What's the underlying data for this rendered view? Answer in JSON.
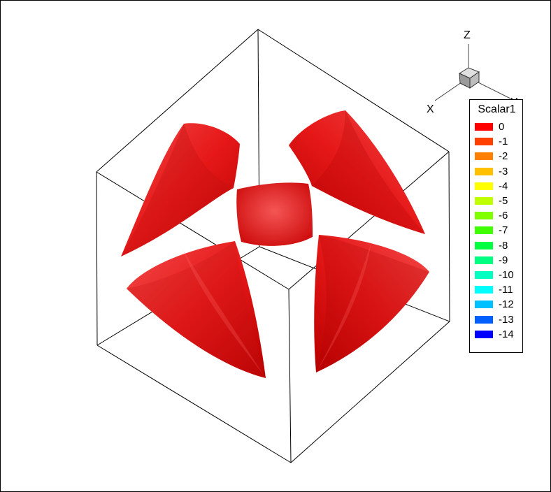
{
  "axes": {
    "x_label": "X",
    "y_label": "Y",
    "z_label": "Z"
  },
  "legend": {
    "title": "Scalar1",
    "entries": [
      {
        "label": "0",
        "color": "#ff0000"
      },
      {
        "label": "-1",
        "color": "#ff4000"
      },
      {
        "label": "-2",
        "color": "#ff8000"
      },
      {
        "label": "-3",
        "color": "#ffc000"
      },
      {
        "label": "-4",
        "color": "#ffff00"
      },
      {
        "label": "-5",
        "color": "#bfff00"
      },
      {
        "label": "-6",
        "color": "#80ff00"
      },
      {
        "label": "-7",
        "color": "#40ff00"
      },
      {
        "label": "-8",
        "color": "#00ff40"
      },
      {
        "label": "-9",
        "color": "#00ff80"
      },
      {
        "label": "-10",
        "color": "#00ffc0"
      },
      {
        "label": "-11",
        "color": "#00ffff"
      },
      {
        "label": "-12",
        "color": "#00c0ff"
      },
      {
        "label": "-13",
        "color": "#0060ff"
      },
      {
        "label": "-14",
        "color": "#0000ff"
      }
    ]
  },
  "surface_color": "#ee1111"
}
